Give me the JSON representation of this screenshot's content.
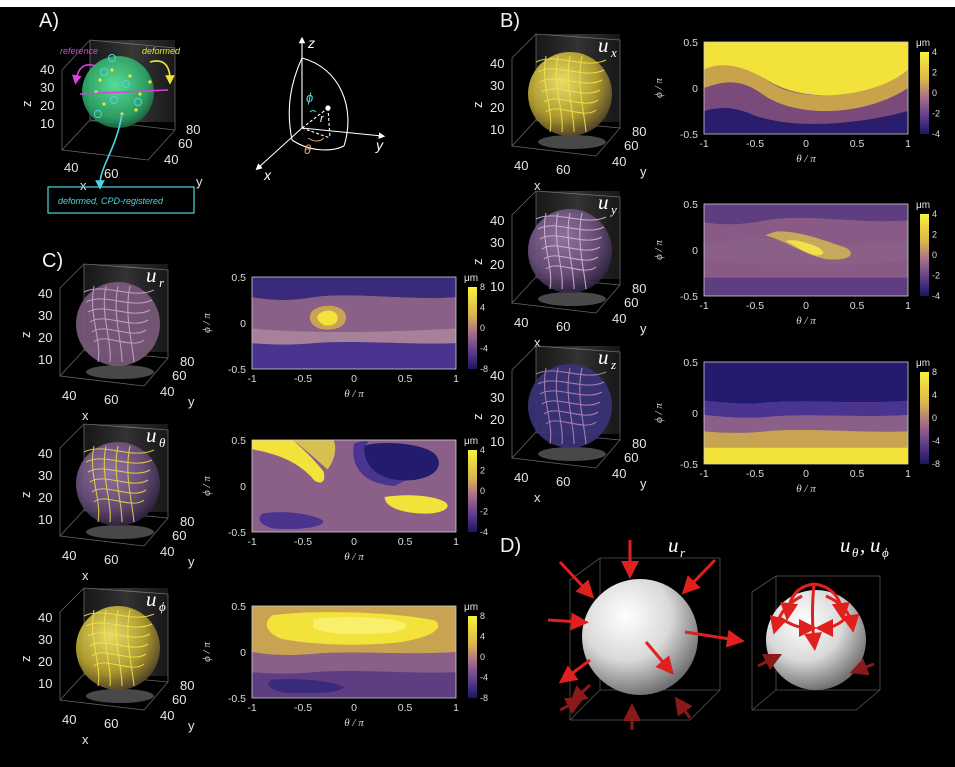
{
  "figure": {
    "panels": {
      "A": "A)",
      "B": "B)",
      "C": "C)",
      "D": "D)"
    }
  },
  "panelA": {
    "reference_label": "reference",
    "deformed_label": "deformed",
    "registered_label": "deformed, CPD-registered",
    "z_ticks": [
      "40",
      "30",
      "20",
      "10"
    ],
    "x_ticks": [
      "40",
      "60"
    ],
    "y_ticks": [
      "40",
      "60",
      "80"
    ],
    "x_label": "x",
    "y_label": "y",
    "z_label": "z",
    "coord_labels": {
      "z": "z",
      "y": "y",
      "x": "x",
      "phi": "ϕ",
      "theta": "θ",
      "r": "r"
    }
  },
  "maps": [
    {
      "id": "ux",
      "component": "u",
      "sub": "x",
      "unit": "μm",
      "cbar_ticks": [
        "4",
        "2",
        "0",
        "-2",
        "-4"
      ]
    },
    {
      "id": "uy",
      "component": "u",
      "sub": "y",
      "unit": "μm",
      "cbar_ticks": [
        "4",
        "2",
        "0",
        "-2",
        "-4"
      ]
    },
    {
      "id": "uz",
      "component": "u",
      "sub": "z",
      "unit": "μm",
      "cbar_ticks": [
        "8",
        "4",
        "0",
        "-4",
        "-8"
      ]
    },
    {
      "id": "ur",
      "component": "u",
      "sub": "r",
      "unit": "μm",
      "cbar_ticks": [
        "8",
        "4",
        "0",
        "-4",
        "-8"
      ]
    },
    {
      "id": "utheta",
      "component": "u",
      "sub": "θ",
      "unit": "μm",
      "cbar_ticks": [
        "4",
        "2",
        "0",
        "-2",
        "-4"
      ]
    },
    {
      "id": "uphi",
      "component": "u",
      "sub": "ϕ",
      "unit": "μm",
      "cbar_ticks": [
        "8",
        "4",
        "0",
        "-4",
        "-8"
      ]
    }
  ],
  "map_axes": {
    "x_label": "θ / π",
    "y_label": "ϕ / π",
    "x_ticks": [
      "-1",
      "-0.5",
      "0",
      "0.5",
      "1"
    ],
    "y_ticks": [
      "0.5",
      "0",
      "-0.5"
    ]
  },
  "scatter3d": {
    "z_ticks": [
      "40",
      "30",
      "20",
      "10"
    ],
    "x_ticks": [
      "40",
      "60"
    ],
    "y_ticks": [
      "40",
      "60",
      "80"
    ],
    "x_label": "x",
    "y_label": "y",
    "z_label": "z"
  },
  "panelD": {
    "left_label": "u_r",
    "left_main": "u",
    "left_sub": "r",
    "right_main1": "u",
    "right_sub1": "θ",
    "right_sep": ", ",
    "right_main2": "u",
    "right_sub2": "ϕ"
  },
  "colors": {
    "yellow": "#f2e23a",
    "mid": "#a8708a",
    "navy": "#231c6e",
    "arrow": "#e01f1f",
    "cyan": "#4fd5e0",
    "magenta": "#e040e0"
  }
}
